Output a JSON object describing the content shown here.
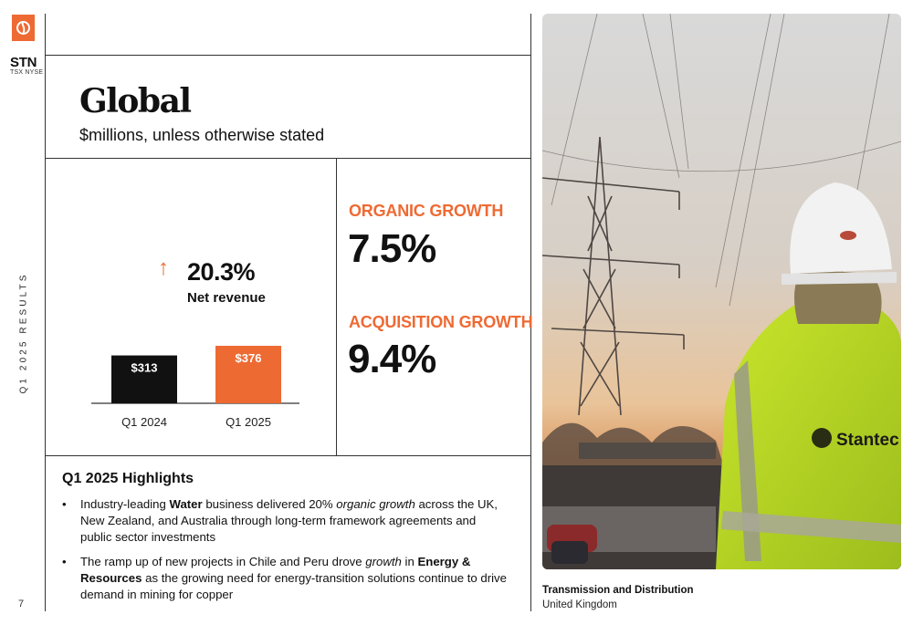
{
  "brand": {
    "ticker": "STN",
    "exchange": "TSX NYSE",
    "accent_color": "#ee6a33",
    "logo_icon": "stantec-logo-icon"
  },
  "sidebar": {
    "vertical_label": "Q1 2025 RESULTS",
    "page_number": "7"
  },
  "header": {
    "title": "Global",
    "subtitle": "$millions, unless otherwise stated"
  },
  "growth": {
    "arrow": "↑",
    "value": "20.3%",
    "label": "Net revenue"
  },
  "chart_data": {
    "type": "bar",
    "categories": [
      "Q1 2024",
      "Q1 2025"
    ],
    "values": [
      313,
      376
    ],
    "value_labels": [
      "$313",
      "$376"
    ],
    "colors": [
      "#111111",
      "#ee6a33"
    ],
    "ylim": [
      0,
      376
    ]
  },
  "stats": {
    "organic_label": "ORGANIC GROWTH",
    "organic_value": "7.5%",
    "acquisition_label": "ACQUISITION GROWTH",
    "acquisition_value": "9.4%"
  },
  "highlights": {
    "title": "Q1 2025 Highlights",
    "bullet_char": "•",
    "b1_p1": "Industry-leading ",
    "b1_bold": "Water",
    "b1_p2": " business delivered 20% ",
    "b1_italic": "organic growth",
    "b1_p3": " across the UK, New Zealand, and Australia through long-term framework agreements and public sector investments",
    "b2_p1": "The ramp up of new projects in Chile and Peru drove ",
    "b2_italic": "growth",
    "b2_p2": " in ",
    "b2_bold": "Energy & Resources",
    "b2_p3": " as the growing need for energy-transition solutions continue to drive demand in mining for copper"
  },
  "photo": {
    "jacket_logo": "Stantec",
    "caption_title": "Transmission and Distribution",
    "caption_sub": "United Kingdom"
  }
}
